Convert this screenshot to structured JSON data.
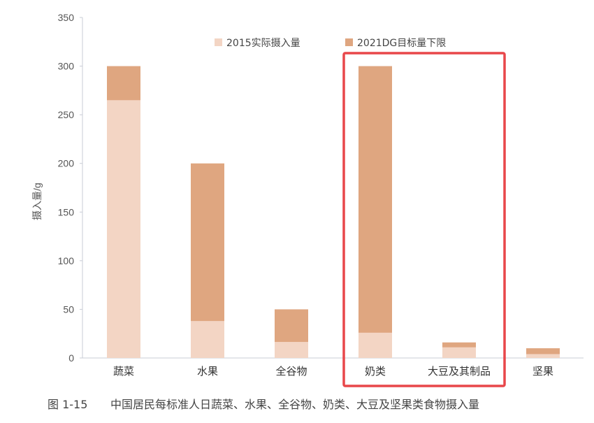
{
  "chart_data": {
    "type": "bar",
    "title": "",
    "caption_label": "图 1-15",
    "caption_text": "中国居民每标准人日蔬菜、水果、全谷物、奶类、大豆及坚果类食物摄入量",
    "xlabel": "",
    "ylabel": "摄入量/g",
    "ylim": [
      0,
      350
    ],
    "yticks": [
      0,
      50,
      100,
      150,
      200,
      250,
      300,
      350
    ],
    "grid": false,
    "legend_placement": "top-center",
    "categories": [
      "蔬菜",
      "水果",
      "全谷物",
      "奶类",
      "大豆及其制品",
      "坚果"
    ],
    "series": [
      {
        "name": "2015实际摄入量",
        "values": [
          265,
          38,
          16.5,
          26,
          11,
          4
        ],
        "color": "#f3d5c4"
      },
      {
        "name": "2021DG目标量下限",
        "values": [
          300,
          200,
          50,
          300,
          16,
          10
        ],
        "color": "#dfa680"
      }
    ],
    "highlight_box": {
      "categories": [
        "奶类",
        "大豆及其制品"
      ],
      "color": "#e8474a"
    }
  }
}
